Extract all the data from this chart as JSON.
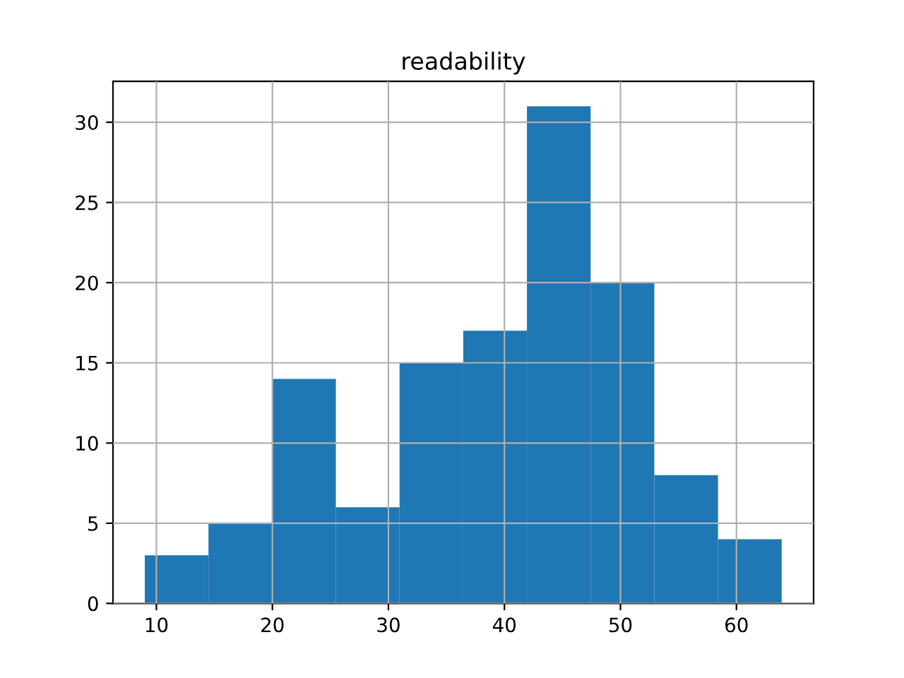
{
  "chart_data": {
    "type": "histogram",
    "title": "readability",
    "bins": [
      9.0,
      14.49,
      19.98,
      25.47,
      30.96,
      36.45,
      41.94,
      47.43,
      52.92,
      58.41,
      63.9
    ],
    "values": [
      3,
      5,
      14,
      6,
      15,
      17,
      31,
      20,
      8,
      4
    ],
    "color": "#1f77b4",
    "xlim": [
      6.26,
      66.65
    ],
    "xticks": [
      10,
      20,
      30,
      40,
      50,
      60
    ],
    "ylim": [
      0,
      32.55
    ],
    "yticks": [
      0,
      5,
      10,
      15,
      20,
      25,
      30
    ],
    "grid": true
  }
}
